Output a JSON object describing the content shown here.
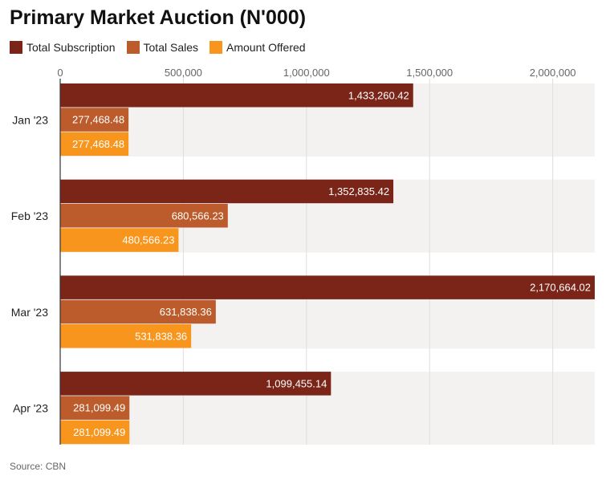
{
  "title": "Primary Market Auction (N'000)",
  "source": "Source: CBN",
  "legend": [
    {
      "label": "Total Subscription",
      "color": "#7b2519"
    },
    {
      "label": "Total Sales",
      "color": "#bc5b2b"
    },
    {
      "label": "Amount Offered",
      "color": "#f7951d"
    }
  ],
  "chart_data": {
    "type": "bar",
    "orientation": "horizontal",
    "title": "Primary Market Auction (N'000)",
    "categories": [
      "Jan '23",
      "Feb '23",
      "Mar '23",
      "Apr '23"
    ],
    "xlim": [
      0,
      2170664.02
    ],
    "ticks": [
      0,
      500000,
      1000000,
      1500000,
      2000000
    ],
    "tick_labels": [
      "0",
      "500,000",
      "1,000,000",
      "1,500,000",
      "2,000,000"
    ],
    "legend_position": "top-left",
    "series": [
      {
        "name": "Total Subscription",
        "color": "#7b2519",
        "values": [
          1433260.42,
          1352835.42,
          2170664.02,
          1099455.14
        ],
        "labels": [
          "1,433,260.42",
          "1,352,835.42",
          "2,170,664.02",
          "1,099,455.14"
        ]
      },
      {
        "name": "Total Sales",
        "color": "#bc5b2b",
        "values": [
          277468.48,
          680566.23,
          631838.36,
          281099.49
        ],
        "labels": [
          "277,468.48",
          "680,566.23",
          "631,838.36",
          "281,099.49"
        ]
      },
      {
        "name": "Amount Offered",
        "color": "#f7951d",
        "values": [
          277468.48,
          480566.23,
          531838.36,
          281099.49
        ],
        "labels": [
          "277,468.48",
          "480,566.23",
          "531,838.36",
          "281,099.49"
        ]
      }
    ]
  }
}
